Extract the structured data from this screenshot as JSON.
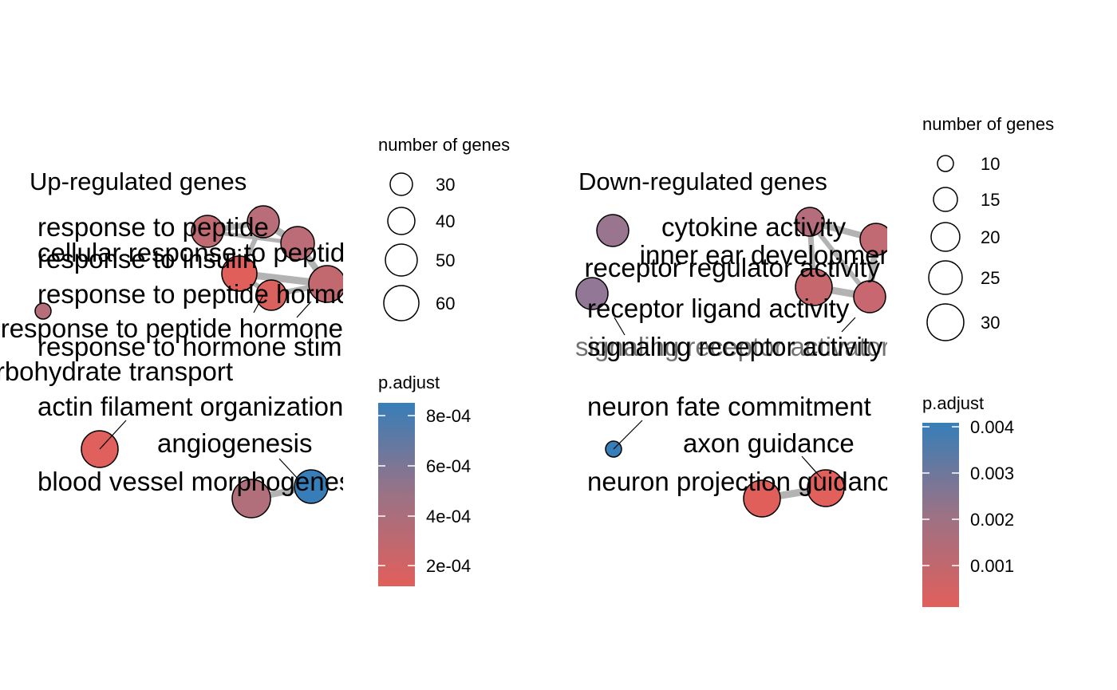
{
  "chart_data": [
    {
      "type": "network",
      "title": "Up-regulated genes",
      "size_legend": {
        "title": "number of genes",
        "values": [
          30,
          40,
          50,
          60
        ]
      },
      "color_legend": {
        "title": "p.adjust",
        "ticks": [
          "2e-04",
          "4e-04",
          "6e-04",
          "8e-04"
        ],
        "low_color": "#e15f5b",
        "high_color": "#377eb8"
      },
      "terms": [
        "response to peptide",
        "cellular response to peptide",
        "response to insulin",
        "response to peptide hormone",
        "response to peptide hormone",
        "response to hormone stimulus",
        "carbohydrate transport",
        "actin filament organization",
        "angiogenesis",
        "blood vessel morphogenesis"
      ]
    },
    {
      "type": "network",
      "title": "Down-regulated genes",
      "size_legend": {
        "title": "number of genes",
        "values": [
          10,
          15,
          20,
          25,
          30
        ]
      },
      "color_legend": {
        "title": "p.adjust",
        "ticks": [
          "0.001",
          "0.002",
          "0.003",
          "0.004"
        ],
        "low_color": "#e15f5b",
        "high_color": "#377eb8"
      },
      "terms": [
        "cytokine activity",
        "inner ear development",
        "receptor regulator activity",
        "receptor ligand activity",
        "signaling receptor activity",
        "signaling receptor activator activity",
        "neuron fate commitment",
        "axon guidance",
        "neuron projection guidance"
      ]
    }
  ]
}
